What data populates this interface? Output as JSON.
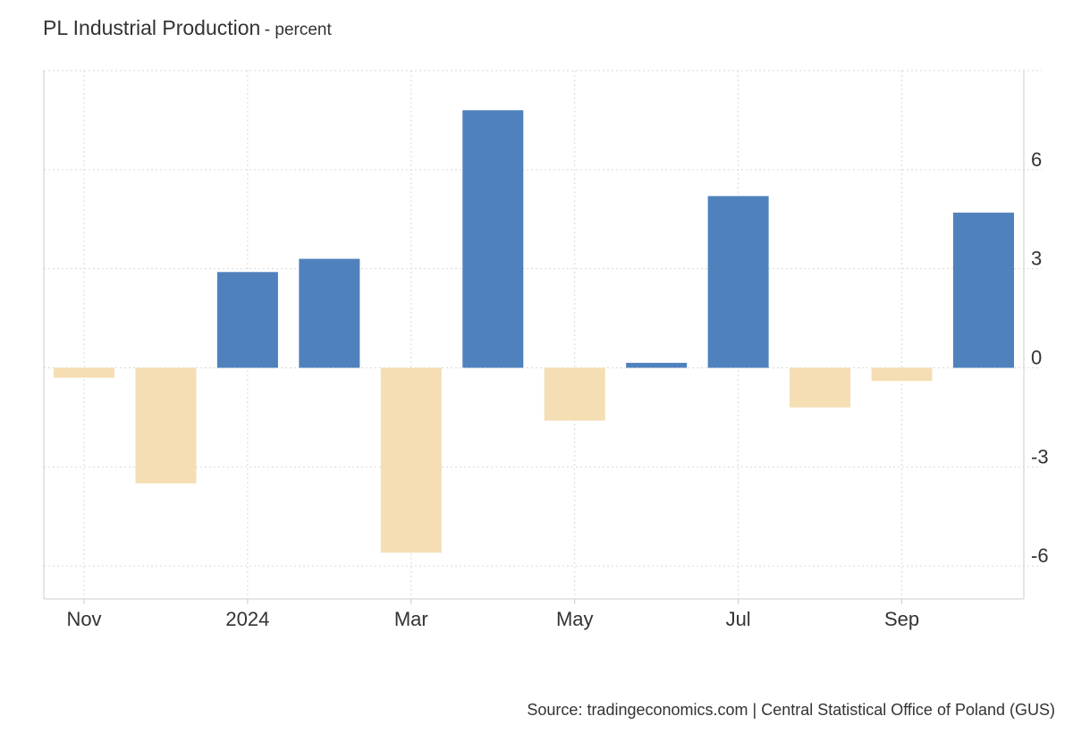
{
  "header": {
    "title": "PL Industrial Production",
    "unit": "- percent"
  },
  "footer": {
    "source": "Source: tradingeconomics.com | Central Statistical Office of Poland (GUS)"
  },
  "colors": {
    "positive": "#4f81bd",
    "negative": "#f5deb3",
    "grid": "#d9d9d9",
    "axis": "#cccccc",
    "text": "#333333"
  },
  "chart_data": {
    "type": "bar",
    "title": "PL Industrial Production",
    "unit": "percent",
    "categories": [
      "2023-11",
      "2023-12",
      "2024-01",
      "2024-02",
      "2024-03",
      "2024-04",
      "2024-05",
      "2024-06",
      "2024-07",
      "2024-08",
      "2024-09",
      "2024-10"
    ],
    "values": [
      -0.3,
      -3.5,
      2.9,
      3.3,
      -5.6,
      7.8,
      -1.6,
      0.15,
      5.2,
      -1.2,
      -0.4,
      4.7
    ],
    "ylim": [
      -7,
      9
    ],
    "yticks": [
      -6,
      -3,
      0,
      3,
      6
    ],
    "ytick_labels": [
      "-6",
      "-3",
      "0",
      "3",
      "6"
    ],
    "xticks": [
      {
        "label": "Nov",
        "at": "2023-11"
      },
      {
        "label": "2024",
        "at": "2024-01"
      },
      {
        "label": "Mar",
        "at": "2024-03"
      },
      {
        "label": "May",
        "at": "2024-05"
      },
      {
        "label": "Jul",
        "at": "2024-07"
      },
      {
        "label": "Sep",
        "at": "2024-09"
      }
    ],
    "y_axis_side": "right",
    "grid": true,
    "legend": false
  }
}
